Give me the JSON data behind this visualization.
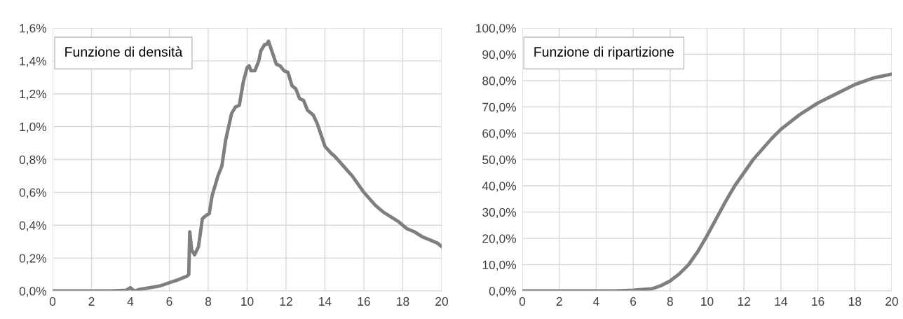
{
  "chart_data": [
    {
      "type": "line",
      "title": "Funzione di densità",
      "x": [
        0,
        3,
        3.8,
        4,
        4.2,
        4.5,
        5,
        5.5,
        6,
        6.5,
        6.9,
        7.0,
        7.05,
        7.15,
        7.3,
        7.5,
        7.7,
        7.9,
        8.05,
        8.2,
        8.5,
        8.7,
        8.9,
        9.2,
        9.4,
        9.6,
        9.8,
        10.0,
        10.1,
        10.2,
        10.4,
        10.6,
        10.7,
        10.9,
        11.0,
        11.1,
        11.3,
        11.5,
        11.7,
        11.9,
        12.1,
        12.3,
        12.5,
        12.7,
        12.9,
        13.1,
        13.4,
        13.6,
        13.8,
        14.0,
        14.3,
        14.5,
        14.8,
        15.1,
        15.4,
        15.7,
        16.0,
        16.3,
        16.6,
        17.0,
        17.4,
        17.8,
        18.2,
        18.6,
        19.0,
        19.4,
        19.8,
        20
      ],
      "series": [
        {
          "color": "#7f7f7f",
          "values": [
            0,
            0,
            0.005,
            0.02,
            0.0,
            0.01,
            0.02,
            0.03,
            0.05,
            0.07,
            0.09,
            0.1,
            0.36,
            0.25,
            0.22,
            0.27,
            0.44,
            0.46,
            0.47,
            0.58,
            0.7,
            0.76,
            0.92,
            1.08,
            1.12,
            1.13,
            1.27,
            1.36,
            1.37,
            1.34,
            1.34,
            1.4,
            1.46,
            1.5,
            1.5,
            1.52,
            1.45,
            1.38,
            1.37,
            1.34,
            1.33,
            1.25,
            1.23,
            1.17,
            1.16,
            1.1,
            1.07,
            1.02,
            0.95,
            0.88,
            0.84,
            0.82,
            0.78,
            0.74,
            0.7,
            0.65,
            0.6,
            0.56,
            0.52,
            0.48,
            0.45,
            0.42,
            0.38,
            0.36,
            0.33,
            0.31,
            0.29,
            0.27
          ]
        }
      ],
      "xlim": [
        0,
        20
      ],
      "xticks": [
        0,
        2,
        4,
        6,
        8,
        10,
        12,
        14,
        16,
        18,
        20
      ],
      "ylim": [
        0,
        1.6
      ],
      "yticks": [
        {
          "value": 0,
          "label": "0,0%"
        },
        {
          "value": 0.2,
          "label": "0,2%"
        },
        {
          "value": 0.4,
          "label": "0,4%"
        },
        {
          "value": 0.6,
          "label": "0,6%"
        },
        {
          "value": 0.8,
          "label": "0,8%"
        },
        {
          "value": 1.0,
          "label": "1,0%"
        },
        {
          "value": 1.2,
          "label": "1,2%"
        },
        {
          "value": 1.4,
          "label": "1,4%"
        },
        {
          "value": 1.6,
          "label": "1,6%"
        }
      ],
      "grid": true,
      "marker": "none",
      "line_style": "solid"
    },
    {
      "type": "line",
      "title": "Funzione di ripartizione",
      "x": [
        0,
        5,
        6,
        7,
        7.5,
        8,
        8.5,
        9,
        9.5,
        10,
        10.5,
        11,
        11.5,
        12,
        12.5,
        13,
        13.5,
        14,
        15,
        16,
        17,
        18,
        19,
        20
      ],
      "series": [
        {
          "color": "#7f7f7f",
          "values": [
            0,
            0,
            0.3,
            0.8,
            2,
            3.8,
            6.5,
            10,
            15,
            21,
            27.5,
            34,
            40,
            45,
            50,
            54,
            58,
            61.5,
            67,
            71.5,
            75,
            78.5,
            81,
            82.5
          ]
        }
      ],
      "xlim": [
        0,
        20
      ],
      "xticks": [
        0,
        2,
        4,
        6,
        8,
        10,
        12,
        14,
        16,
        18,
        20
      ],
      "ylim": [
        0,
        100
      ],
      "yticks": [
        {
          "value": 0,
          "label": "0,0%"
        },
        {
          "value": 10,
          "label": "10,0%"
        },
        {
          "value": 20,
          "label": "20,0%"
        },
        {
          "value": 30,
          "label": "30,0%"
        },
        {
          "value": 40,
          "label": "40,0%"
        },
        {
          "value": 50,
          "label": "50,0%"
        },
        {
          "value": 60,
          "label": "60,0%"
        },
        {
          "value": 70,
          "label": "70,0%"
        },
        {
          "value": 80,
          "label": "80,0%"
        },
        {
          "value": 90,
          "label": "90,0%"
        },
        {
          "value": 100,
          "label": "100,0%"
        }
      ],
      "grid": true,
      "marker": "none",
      "line_style": "solid"
    }
  ]
}
